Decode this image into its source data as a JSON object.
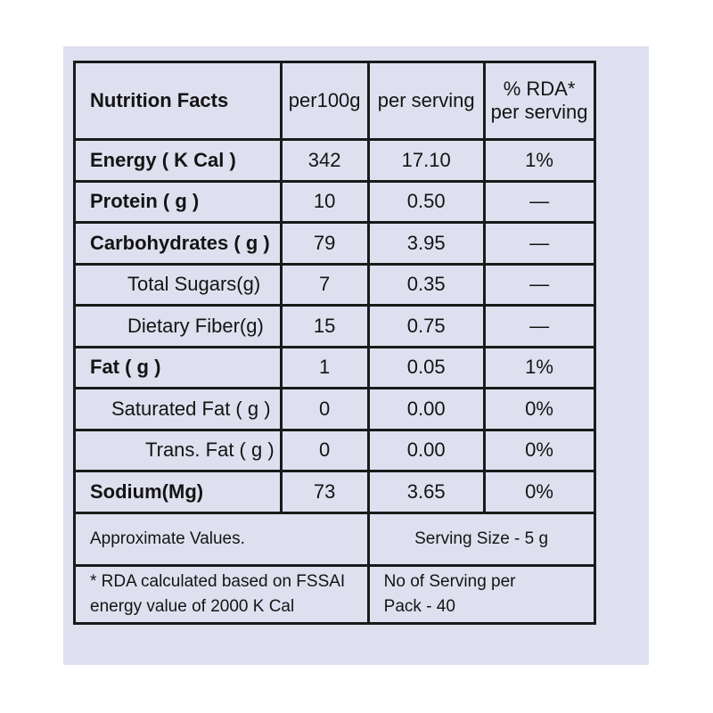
{
  "header": {
    "title": "Nutrition Facts",
    "per100g": "per100g",
    "per_serving": "per serving",
    "rda_line1": "% RDA*",
    "rda_line2": "per serving"
  },
  "rows": [
    {
      "name": "Energy ( K Cal )",
      "per100g": "342",
      "per_serving": "17.10",
      "rda": "1%"
    },
    {
      "name": "Protein ( g )",
      "per100g": "10",
      "per_serving": "0.50",
      "rda": "—"
    },
    {
      "name": "Carbohydrates ( g )",
      "per100g": "79",
      "per_serving": "3.95",
      "rda": "—"
    },
    {
      "name": "Total Sugars(g)",
      "per100g": "7",
      "per_serving": "0.35",
      "rda": "—"
    },
    {
      "name": "Dietary Fiber(g)",
      "per100g": "15",
      "per_serving": "0.75",
      "rda": "—"
    },
    {
      "name": "Fat ( g )",
      "per100g": "1",
      "per_serving": "0.05",
      "rda": "1%"
    },
    {
      "name": "Saturated Fat ( g )",
      "per100g": "0",
      "per_serving": "0.00",
      "rda": "0%"
    },
    {
      "name": "Trans. Fat ( g )",
      "per100g": "0",
      "per_serving": "0.00",
      "rda": "0%"
    },
    {
      "name": "Sodium(Mg)",
      "per100g": "73",
      "per_serving": "3.65",
      "rda": "0%"
    }
  ],
  "footer": {
    "approx": "Approximate Values.",
    "serving_size": "Serving Size - 5 g",
    "rda_note_line1": "* RDA calculated based on FSSAI",
    "rda_note_line2": "energy value of 2000 K Cal",
    "servings_line1": "No of Serving per",
    "servings_line2": "Pack - 40"
  },
  "colors": {
    "label_background": "#dfe0ef",
    "text": "#141414",
    "border": "#1a1a1a"
  }
}
